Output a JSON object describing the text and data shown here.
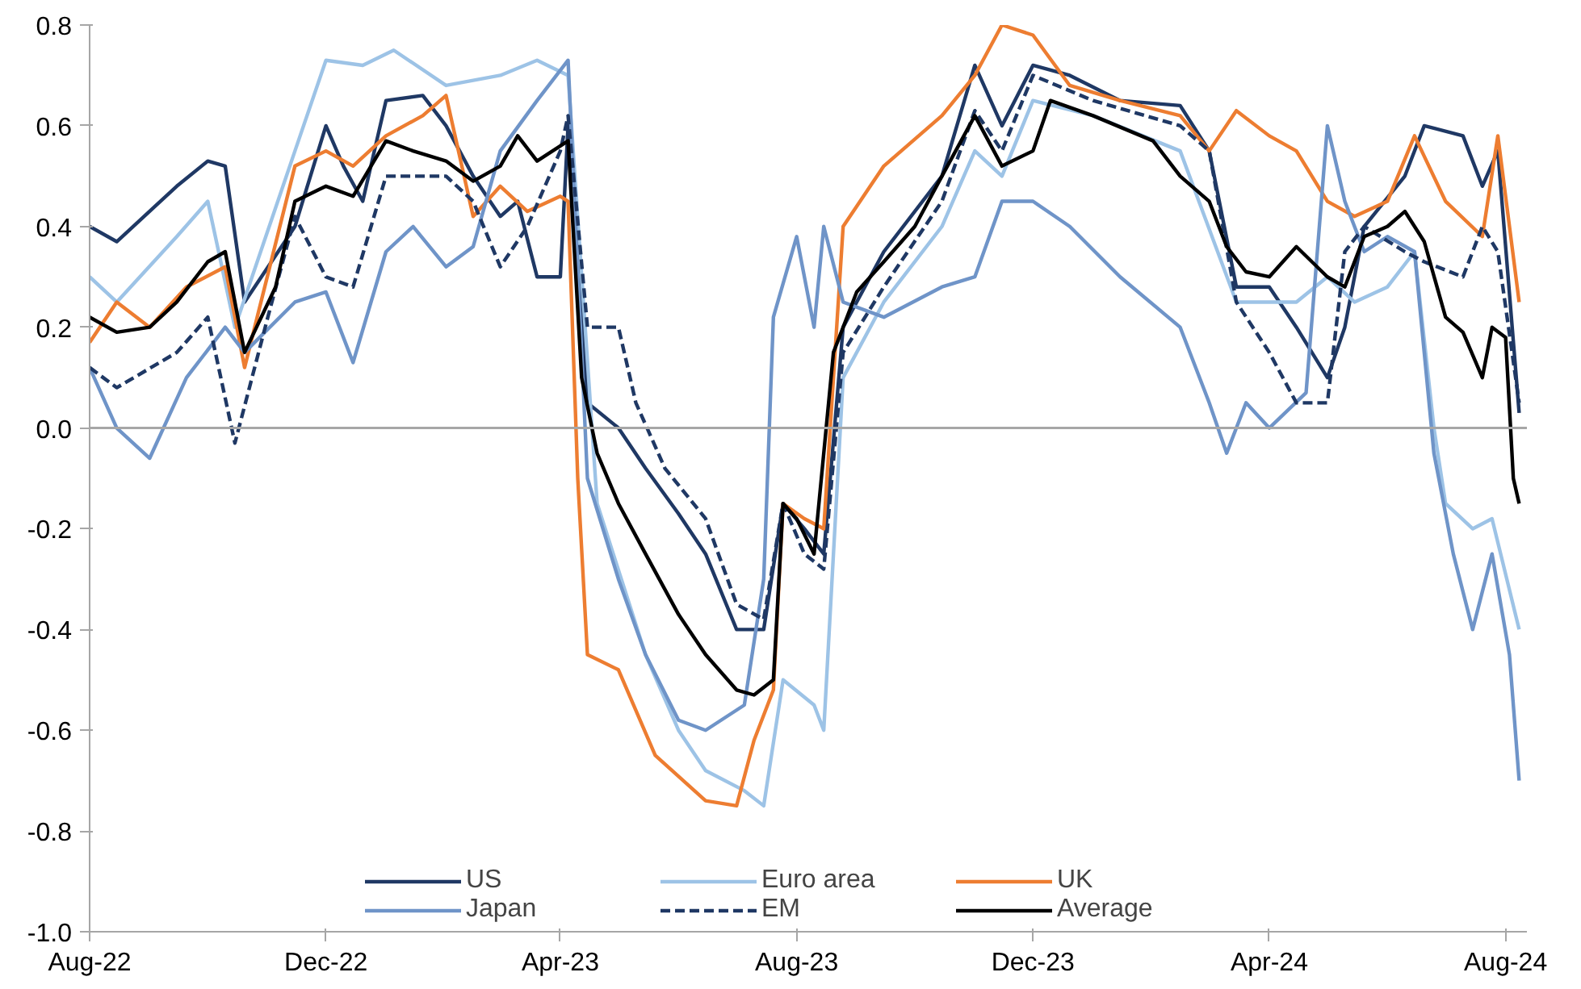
{
  "chart_data": {
    "type": "line",
    "xlim": [
      "2022-08-01",
      "2024-08-12"
    ],
    "xticks": [
      {
        "value": "2022-08-01",
        "label": "Aug-22"
      },
      {
        "value": "2022-12-01",
        "label": "Dec-22"
      },
      {
        "value": "2023-04-01",
        "label": "Apr-23"
      },
      {
        "value": "2023-08-01",
        "label": "Aug-23"
      },
      {
        "value": "2023-12-01",
        "label": "Dec-23"
      },
      {
        "value": "2024-04-01",
        "label": "Apr-24"
      },
      {
        "value": "2024-08-01",
        "label": "Aug-24"
      }
    ],
    "ylim": [
      -1.0,
      0.8
    ],
    "yticks": [
      {
        "value": -1.0,
        "label": "-1.0"
      },
      {
        "value": -0.8,
        "label": "-0.8"
      },
      {
        "value": -0.6,
        "label": "-0.6"
      },
      {
        "value": -0.4,
        "label": "-0.4"
      },
      {
        "value": -0.2,
        "label": "-0.2"
      },
      {
        "value": 0,
        "label": "0.0"
      },
      {
        "value": 0.2,
        "label": "0.2"
      },
      {
        "value": 0.4,
        "label": "0.4"
      },
      {
        "value": 0.6,
        "label": "0.6"
      },
      {
        "value": 0.8,
        "label": "0.8"
      }
    ],
    "grid": false,
    "legend": "bottom",
    "line_style": "solid",
    "ref_lines": [
      {
        "axis": "y",
        "value": 0,
        "color": "#a6a6a6"
      }
    ],
    "series": [
      {
        "name": "US",
        "color": "#1f3864",
        "x": [
          "2022-08-01",
          "2022-08-15",
          "2022-09-15",
          "2022-10-01",
          "2022-10-10",
          "2022-10-20",
          "2022-11-15",
          "2022-12-01",
          "2022-12-10",
          "2022-12-20",
          "2023-01-01",
          "2023-01-20",
          "2023-02-01",
          "2023-02-15",
          "2023-03-01",
          "2023-03-10",
          "2023-03-20",
          "2023-04-01",
          "2023-04-05",
          "2023-04-15",
          "2023-05-01",
          "2023-05-15",
          "2023-06-01",
          "2023-06-15",
          "2023-07-01",
          "2023-07-15",
          "2023-07-25",
          "2023-08-05",
          "2023-08-15",
          "2023-08-25",
          "2023-09-15",
          "2023-10-15",
          "2023-11-01",
          "2023-11-15",
          "2023-12-01",
          "2023-12-20",
          "2024-01-15",
          "2024-02-15",
          "2024-03-01",
          "2024-03-15",
          "2024-04-01",
          "2024-04-15",
          "2024-05-01",
          "2024-05-10",
          "2024-05-20",
          "2024-06-10",
          "2024-06-20",
          "2024-07-10",
          "2024-07-20",
          "2024-07-28",
          "2024-08-08"
        ],
        "values": [
          0.4,
          0.37,
          0.48,
          0.53,
          0.52,
          0.25,
          0.4,
          0.6,
          0.52,
          0.45,
          0.65,
          0.66,
          0.6,
          0.5,
          0.42,
          0.45,
          0.3,
          0.3,
          0.6,
          0.05,
          0.0,
          -0.08,
          -0.17,
          -0.25,
          -0.4,
          -0.4,
          -0.15,
          -0.2,
          -0.25,
          0.2,
          0.35,
          0.5,
          0.72,
          0.6,
          0.72,
          0.7,
          0.65,
          0.64,
          0.55,
          0.28,
          0.28,
          0.2,
          0.1,
          0.2,
          0.4,
          0.5,
          0.6,
          0.58,
          0.48,
          0.55,
          0.03
        ]
      },
      {
        "name": "Euro area",
        "color": "#9dc3e6",
        "x": [
          "2022-08-01",
          "2022-08-15",
          "2022-09-15",
          "2022-10-01",
          "2022-10-15",
          "2022-11-15",
          "2022-12-01",
          "2022-12-20",
          "2023-01-05",
          "2023-02-01",
          "2023-03-01",
          "2023-03-20",
          "2023-04-05",
          "2023-04-20",
          "2023-05-15",
          "2023-06-01",
          "2023-06-15",
          "2023-07-05",
          "2023-07-15",
          "2023-07-25",
          "2023-08-10",
          "2023-08-15",
          "2023-08-25",
          "2023-09-15",
          "2023-10-15",
          "2023-11-01",
          "2023-11-15",
          "2023-12-01",
          "2024-01-01",
          "2024-02-15",
          "2024-03-15",
          "2024-04-15",
          "2024-05-01",
          "2024-05-15",
          "2024-06-01",
          "2024-06-15",
          "2024-06-25",
          "2024-07-01",
          "2024-07-15",
          "2024-07-25",
          "2024-08-08"
        ],
        "values": [
          0.3,
          0.25,
          0.38,
          0.45,
          0.2,
          0.55,
          0.73,
          0.72,
          0.75,
          0.68,
          0.7,
          0.73,
          0.7,
          -0.15,
          -0.45,
          -0.6,
          -0.68,
          -0.72,
          -0.75,
          -0.5,
          -0.55,
          -0.6,
          0.1,
          0.25,
          0.4,
          0.55,
          0.5,
          0.65,
          0.62,
          0.55,
          0.25,
          0.25,
          0.3,
          0.25,
          0.28,
          0.35,
          0.0,
          -0.15,
          -0.2,
          -0.18,
          -0.4
        ]
      },
      {
        "name": "UK",
        "color": "#ed7d31",
        "x": [
          "2022-08-01",
          "2022-08-15",
          "2022-09-01",
          "2022-09-20",
          "2022-10-10",
          "2022-10-20",
          "2022-11-15",
          "2022-12-01",
          "2022-12-15",
          "2023-01-01",
          "2023-01-20",
          "2023-02-01",
          "2023-02-15",
          "2023-03-01",
          "2023-03-15",
          "2023-04-01",
          "2023-04-05",
          "2023-04-10",
          "2023-04-15",
          "2023-05-01",
          "2023-05-20",
          "2023-06-15",
          "2023-07-01",
          "2023-07-10",
          "2023-07-20",
          "2023-07-25",
          "2023-08-05",
          "2023-08-15",
          "2023-08-25",
          "2023-09-15",
          "2023-10-15",
          "2023-11-01",
          "2023-11-15",
          "2023-12-01",
          "2023-12-20",
          "2024-01-15",
          "2024-02-15",
          "2024-03-01",
          "2024-03-15",
          "2024-04-01",
          "2024-04-15",
          "2024-05-01",
          "2024-05-15",
          "2024-06-01",
          "2024-06-15",
          "2024-07-01",
          "2024-07-20",
          "2024-07-28",
          "2024-08-08"
        ],
        "values": [
          0.17,
          0.25,
          0.2,
          0.28,
          0.32,
          0.12,
          0.52,
          0.55,
          0.52,
          0.58,
          0.62,
          0.66,
          0.42,
          0.48,
          0.43,
          0.46,
          0.45,
          -0.1,
          -0.45,
          -0.48,
          -0.65,
          -0.74,
          -0.75,
          -0.62,
          -0.52,
          -0.15,
          -0.18,
          -0.2,
          0.4,
          0.52,
          0.62,
          0.7,
          0.8,
          0.78,
          0.68,
          0.65,
          0.62,
          0.55,
          0.63,
          0.58,
          0.55,
          0.45,
          0.42,
          0.45,
          0.58,
          0.45,
          0.38,
          0.58,
          0.25
        ]
      },
      {
        "name": "Japan",
        "color": "#6f94c8",
        "x": [
          "2022-08-01",
          "2022-08-15",
          "2022-09-01",
          "2022-09-20",
          "2022-10-10",
          "2022-10-20",
          "2022-11-15",
          "2022-12-01",
          "2022-12-15",
          "2023-01-01",
          "2023-01-15",
          "2023-02-01",
          "2023-02-15",
          "2023-03-01",
          "2023-03-20",
          "2023-04-05",
          "2023-04-15",
          "2023-05-01",
          "2023-05-15",
          "2023-06-01",
          "2023-06-15",
          "2023-07-05",
          "2023-07-15",
          "2023-07-20",
          "2023-08-01",
          "2023-08-10",
          "2023-08-15",
          "2023-08-25",
          "2023-09-15",
          "2023-10-15",
          "2023-11-01",
          "2023-11-15",
          "2023-12-01",
          "2023-12-20",
          "2024-01-15",
          "2024-02-15",
          "2024-03-01",
          "2024-03-10",
          "2024-03-20",
          "2024-04-01",
          "2024-04-20",
          "2024-05-01",
          "2024-05-10",
          "2024-05-20",
          "2024-06-01",
          "2024-06-15",
          "2024-06-25",
          "2024-07-05",
          "2024-07-15",
          "2024-07-25",
          "2024-08-03",
          "2024-08-08"
        ],
        "values": [
          0.12,
          0.0,
          -0.06,
          0.1,
          0.2,
          0.15,
          0.25,
          0.27,
          0.13,
          0.35,
          0.4,
          0.32,
          0.36,
          0.55,
          0.65,
          0.73,
          -0.1,
          -0.3,
          -0.45,
          -0.58,
          -0.6,
          -0.55,
          -0.3,
          0.22,
          0.38,
          0.2,
          0.4,
          0.25,
          0.22,
          0.28,
          0.3,
          0.45,
          0.45,
          0.4,
          0.3,
          0.2,
          0.05,
          -0.05,
          0.05,
          0.0,
          0.07,
          0.6,
          0.45,
          0.35,
          0.38,
          0.35,
          -0.05,
          -0.25,
          -0.4,
          -0.25,
          -0.45,
          -0.7
        ]
      },
      {
        "name": "EM",
        "color": "#1f3864",
        "line_style": "dashed",
        "x": [
          "2022-08-01",
          "2022-08-15",
          "2022-09-15",
          "2022-10-01",
          "2022-10-15",
          "2022-11-01",
          "2022-11-15",
          "2022-12-01",
          "2022-12-15",
          "2023-01-01",
          "2023-02-01",
          "2023-02-15",
          "2023-03-01",
          "2023-03-15",
          "2023-04-01",
          "2023-04-05",
          "2023-04-15",
          "2023-05-01",
          "2023-05-10",
          "2023-05-25",
          "2023-06-15",
          "2023-07-01",
          "2023-07-15",
          "2023-07-25",
          "2023-08-05",
          "2023-08-15",
          "2023-08-25",
          "2023-09-15",
          "2023-10-15",
          "2023-11-01",
          "2023-11-15",
          "2023-12-01",
          "2024-01-01",
          "2024-02-15",
          "2024-03-01",
          "2024-03-15",
          "2024-04-01",
          "2024-04-15",
          "2024-05-01",
          "2024-05-10",
          "2024-05-20",
          "2024-06-10",
          "2024-06-20",
          "2024-07-10",
          "2024-07-20",
          "2024-07-28",
          "2024-08-08"
        ],
        "values": [
          0.12,
          0.08,
          0.15,
          0.22,
          -0.03,
          0.22,
          0.42,
          0.3,
          0.28,
          0.5,
          0.5,
          0.45,
          0.32,
          0.4,
          0.55,
          0.62,
          0.2,
          0.2,
          0.05,
          -0.08,
          -0.18,
          -0.35,
          -0.38,
          -0.15,
          -0.25,
          -0.28,
          0.15,
          0.28,
          0.45,
          0.63,
          0.55,
          0.7,
          0.65,
          0.6,
          0.55,
          0.25,
          0.15,
          0.05,
          0.05,
          0.35,
          0.4,
          0.35,
          0.33,
          0.3,
          0.4,
          0.35,
          0.05
        ]
      },
      {
        "name": "Average",
        "color": "#000000",
        "x": [
          "2022-08-01",
          "2022-08-15",
          "2022-09-01",
          "2022-09-15",
          "2022-10-01",
          "2022-10-10",
          "2022-10-20",
          "2022-11-05",
          "2022-11-15",
          "2022-12-01",
          "2022-12-15",
          "2023-01-01",
          "2023-01-15",
          "2023-02-01",
          "2023-02-15",
          "2023-03-01",
          "2023-03-10",
          "2023-03-20",
          "2023-04-01",
          "2023-04-05",
          "2023-04-12",
          "2023-04-20",
          "2023-05-01",
          "2023-05-15",
          "2023-06-01",
          "2023-06-15",
          "2023-07-01",
          "2023-07-10",
          "2023-07-20",
          "2023-07-25",
          "2023-08-01",
          "2023-08-10",
          "2023-08-20",
          "2023-09-01",
          "2023-09-15",
          "2023-10-01",
          "2023-10-15",
          "2023-11-01",
          "2023-11-15",
          "2023-12-01",
          "2023-12-10",
          "2024-01-01",
          "2024-02-01",
          "2024-02-15",
          "2024-03-01",
          "2024-03-10",
          "2024-03-20",
          "2024-04-01",
          "2024-04-15",
          "2024-05-01",
          "2024-05-10",
          "2024-05-20",
          "2024-06-01",
          "2024-06-10",
          "2024-06-20",
          "2024-07-01",
          "2024-07-10",
          "2024-07-20",
          "2024-07-25",
          "2024-08-01",
          "2024-08-05",
          "2024-08-08"
        ],
        "values": [
          0.22,
          0.19,
          0.2,
          0.25,
          0.33,
          0.35,
          0.15,
          0.28,
          0.45,
          0.48,
          0.46,
          0.57,
          0.55,
          0.53,
          0.49,
          0.52,
          0.58,
          0.53,
          0.56,
          0.57,
          0.1,
          -0.05,
          -0.15,
          -0.25,
          -0.37,
          -0.45,
          -0.52,
          -0.53,
          -0.5,
          -0.15,
          -0.18,
          -0.25,
          0.15,
          0.27,
          0.33,
          0.4,
          0.5,
          0.62,
          0.52,
          0.55,
          0.65,
          0.62,
          0.57,
          0.5,
          0.45,
          0.36,
          0.31,
          0.3,
          0.36,
          0.3,
          0.28,
          0.38,
          0.4,
          0.43,
          0.37,
          0.22,
          0.19,
          0.1,
          0.2,
          0.18,
          -0.1,
          -0.15
        ]
      }
    ]
  }
}
